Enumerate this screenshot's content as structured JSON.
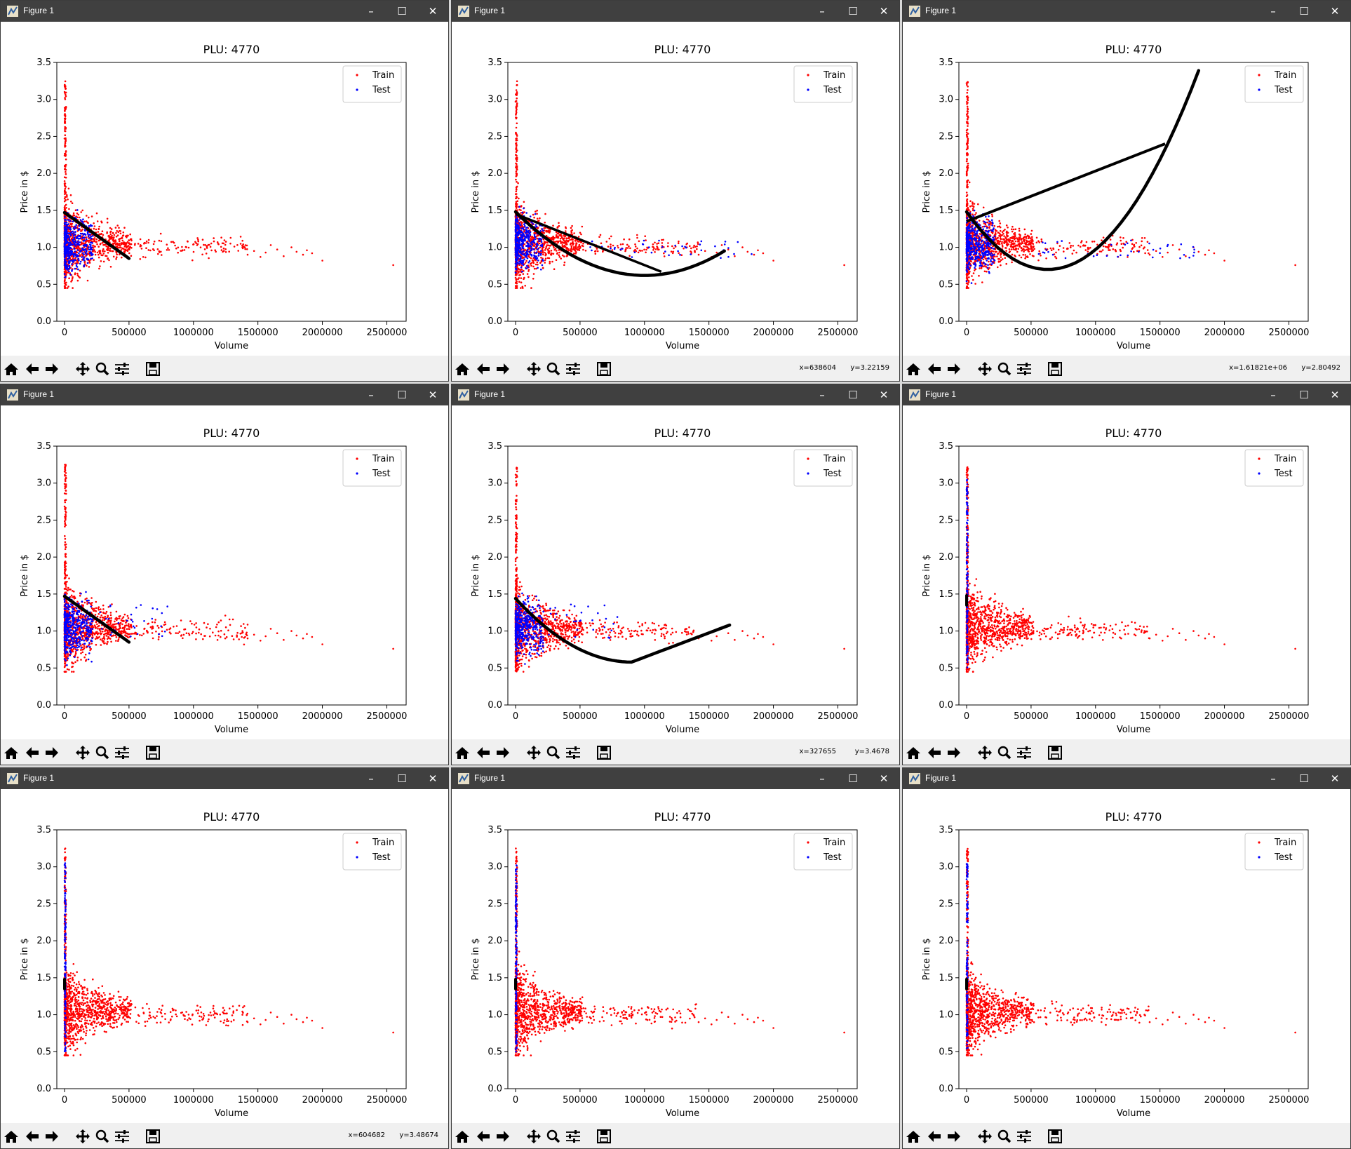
{
  "windows": [
    {
      "title": "Figure 1",
      "model": "linear-short",
      "test_dist": "spread",
      "coords": {
        "x": "",
        "y": ""
      }
    },
    {
      "title": "Figure 1",
      "model": "u-wide",
      "test_dist": "spread-far",
      "coords": {
        "x": "x=638604",
        "y": "y=3.22159"
      }
    },
    {
      "title": "Figure 1",
      "model": "u-steep",
      "test_dist": "spread-far",
      "coords": {
        "x": "x=1.61821e+06",
        "y": "y=2.80492"
      }
    },
    {
      "title": "Figure 1",
      "model": "linear-short",
      "test_dist": "spread-mid",
      "coords": {
        "x": "",
        "y": ""
      }
    },
    {
      "title": "Figure 1",
      "model": "v-long",
      "test_dist": "spread-mid",
      "coords": {
        "x": "x=327655",
        "y": "y=3.4678"
      }
    },
    {
      "title": "Figure 1",
      "model": "point",
      "test_dist": "axis",
      "coords": {
        "x": "",
        "y": ""
      }
    },
    {
      "title": "Figure 1",
      "model": "point",
      "test_dist": "axis",
      "coords": {
        "x": "x=604682",
        "y": "y=3.48674"
      }
    },
    {
      "title": "Figure 1",
      "model": "point",
      "test_dist": "axis",
      "coords": {
        "x": "",
        "y": ""
      }
    },
    {
      "title": "Figure 1",
      "model": "point",
      "test_dist": "axis",
      "coords": {
        "x": "",
        "y": ""
      }
    }
  ],
  "titlebar_icons": {
    "minimize": "–",
    "maximize": "☐",
    "close": "✕"
  },
  "toolbar_icons": [
    "home-icon",
    "back-arrow-icon",
    "forward-arrow-icon",
    "pan-icon",
    "zoom-icon",
    "configure-subplots-icon",
    "save-icon"
  ],
  "colors": {
    "train": "#ff0000",
    "test": "#0000ff",
    "model": "#000000",
    "titlebar": "#404040",
    "toolbar": "#f0f0f0"
  },
  "chart_data": {
    "type": "scatter",
    "title": "PLU: 4770",
    "xlabel": "Volume",
    "ylabel": "Price in $",
    "xlim": [
      -60000,
      2650000
    ],
    "ylim": [
      0,
      3.5
    ],
    "xticks": [
      0,
      500000,
      1000000,
      1500000,
      2000000,
      2500000
    ],
    "xtick_labels": [
      "0",
      "500000",
      "1000000",
      "1500000",
      "2000000",
      "2500000"
    ],
    "yticks": [
      0.0,
      0.5,
      1.0,
      1.5,
      2.0,
      2.5,
      3.0,
      3.5
    ],
    "ytick_labels": [
      "0.0",
      "0.5",
      "1.0",
      "1.5",
      "2.0",
      "2.5",
      "3.0",
      "3.5"
    ],
    "legend": {
      "position": "top-right",
      "entries": [
        "Train",
        "Test"
      ]
    },
    "grid": false,
    "series": [
      {
        "name": "Train",
        "color": "#ff0000"
      },
      {
        "name": "Test",
        "color": "#0000ff"
      }
    ],
    "train_far_points": [
      [
        2550000,
        0.76
      ],
      [
        2000000,
        0.82
      ],
      [
        1920000,
        0.92
      ],
      [
        1880000,
        0.96
      ],
      [
        1850000,
        0.9
      ],
      [
        1800000,
        0.94
      ],
      [
        1760000,
        1.0
      ],
      [
        1700000,
        0.88
      ],
      [
        1650000,
        0.97
      ],
      [
        1600000,
        1.03
      ],
      [
        1560000,
        0.93
      ],
      [
        1520000,
        0.87
      ],
      [
        1470000,
        0.95
      ],
      [
        1420000,
        0.9
      ],
      [
        1380000,
        1.0
      ]
    ]
  }
}
